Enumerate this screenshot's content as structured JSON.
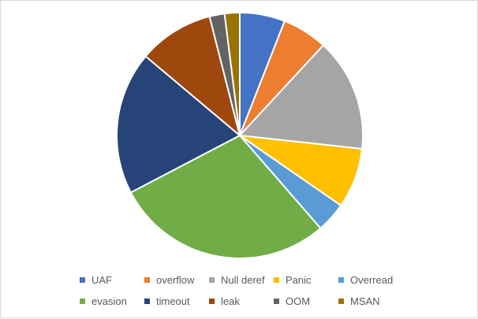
{
  "chart_data": {
    "type": "pie",
    "title": "",
    "start_angle_deg": 0,
    "direction": "clockwise",
    "legend_position": "bottom",
    "slice_border_color": "#ffffff",
    "categories": [
      "UAF",
      "overflow",
      "Null deref",
      "Panic",
      "Overread",
      "evasion",
      "timeout",
      "leak",
      "OOM",
      "MSAN"
    ],
    "values": [
      6,
      6,
      15,
      8,
      4,
      29,
      19,
      10,
      2,
      2
    ],
    "colors": [
      "#4472C4",
      "#ED7D31",
      "#A5A5A5",
      "#FFC000",
      "#5B9BD5",
      "#70AD47",
      "#264478",
      "#9E480E",
      "#636363",
      "#997300"
    ]
  }
}
